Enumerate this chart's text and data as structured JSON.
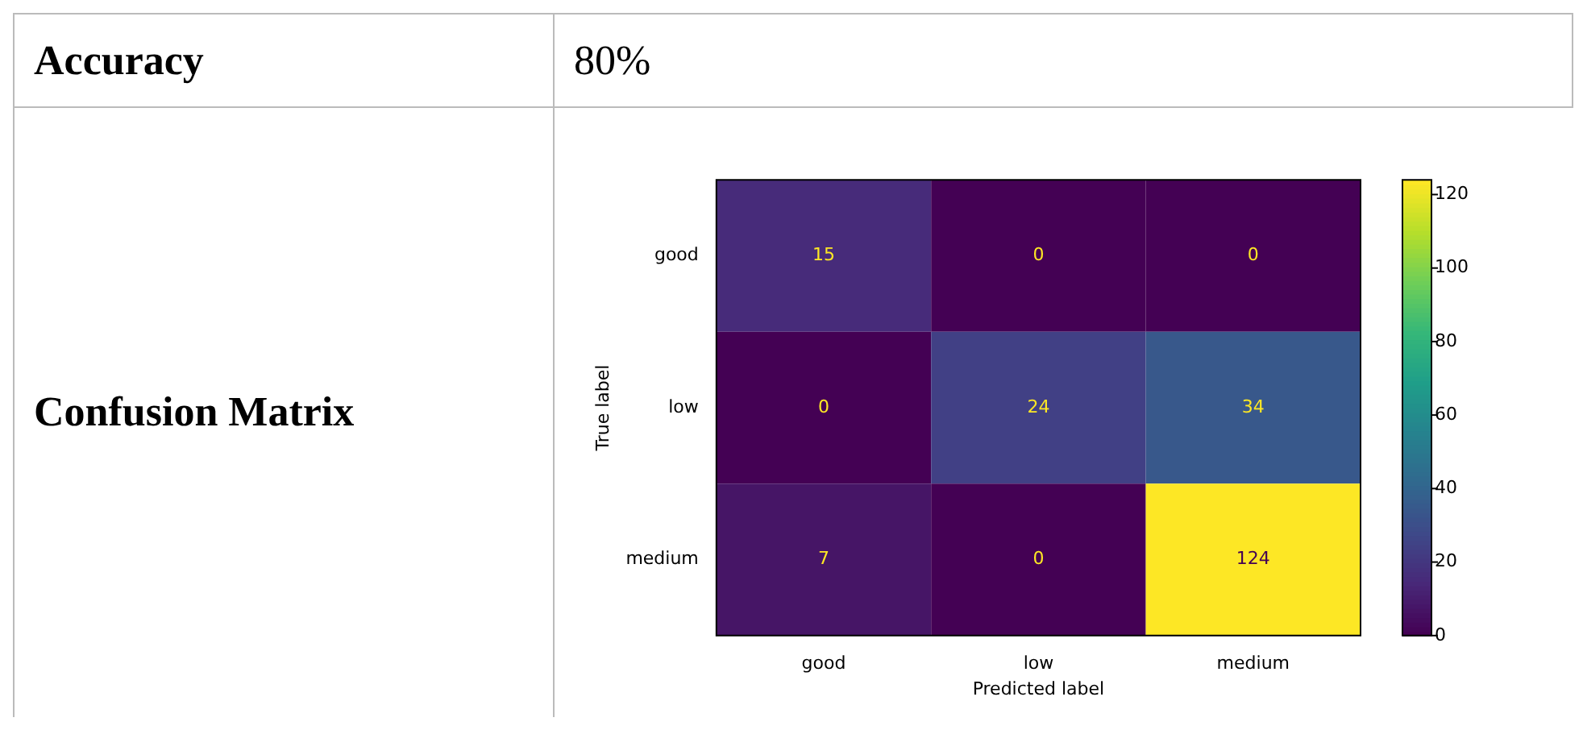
{
  "chart_data": {
    "type": "heatmap",
    "xlabel": "Predicted label",
    "ylabel": "True label",
    "categories": [
      "good",
      "low",
      "medium"
    ],
    "y_categories": [
      "good",
      "low",
      "medium"
    ],
    "cells": [
      [
        15,
        0,
        0
      ],
      [
        0,
        24,
        34
      ],
      [
        7,
        0,
        124
      ]
    ],
    "clim": [
      0,
      124
    ],
    "cticks": [
      0,
      20,
      40,
      60,
      80,
      100,
      120
    ],
    "data_labels": true,
    "annotations": [
      "Accuracy",
      "80%",
      "Confusion Matrix"
    ]
  }
}
